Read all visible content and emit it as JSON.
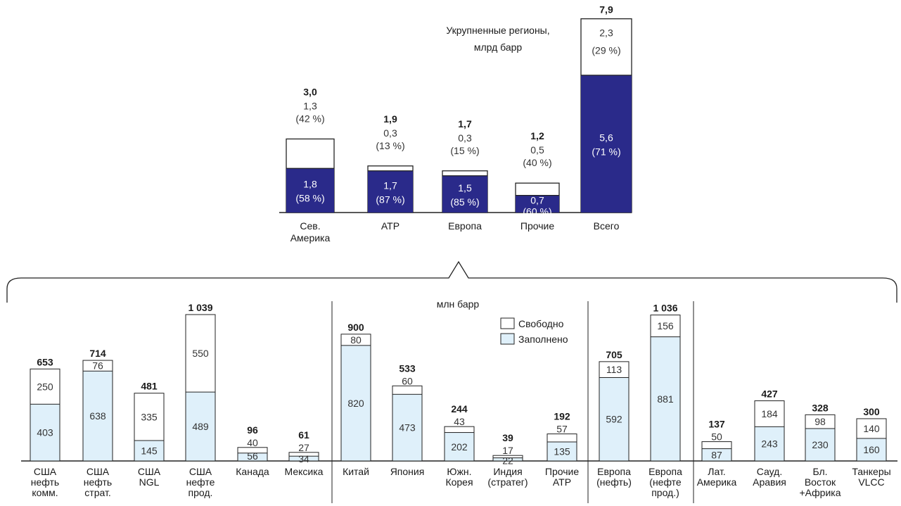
{
  "chart_data": [
    {
      "type": "bar",
      "stacked": true,
      "title": "Укрупненные регионы,\nмлрд  барр",
      "unit": "млрд барр",
      "categories": [
        "Сев.\nАмерика",
        "АТР",
        "Европа",
        "Прочие",
        "Всего"
      ],
      "series": [
        {
          "role": "filled",
          "values": [
            1.8,
            1.7,
            1.5,
            0.7,
            5.6
          ],
          "labels": [
            "1,8",
            "1,7",
            "1,5",
            "0,7",
            "5,6"
          ],
          "shares": [
            "(58 %)",
            "(87 %)",
            "(85 %)",
            "(60 %)",
            "(71 %)"
          ]
        },
        {
          "role": "free",
          "values": [
            1.3,
            0.3,
            0.3,
            0.5,
            2.3
          ],
          "labels": [
            "1,3",
            "0,3",
            "0,3",
            "0,5",
            "2,3"
          ],
          "shares": [
            "(42 %)",
            "(13 %)",
            "(15 %)",
            "(40 %)",
            "(29 %)"
          ]
        }
      ],
      "totals": [
        3.0,
        1.9,
        1.7,
        1.2,
        7.9
      ],
      "total_labels": [
        "3,0",
        "1,9",
        "1,7",
        "1,2",
        "7,9"
      ],
      "colors": {
        "filled": "#2a2a8a",
        "free": "#ffffff"
      }
    },
    {
      "type": "bar",
      "stacked": true,
      "title": "млн барр",
      "unit": "млн барр",
      "categories": [
        "США\nнефть\nкомм.",
        "США\nнефть\nстрат.",
        "США\nNGL",
        "США\nнефте\nпрод.",
        "Канада",
        "Мексика",
        "Китай",
        "Япония",
        "Южн.\nКорея",
        "Индия\n(стратег)",
        "Прочие\nАТР",
        "Европа\n(нефть)",
        "Европа\n(нефте\nпрод.)",
        "Лат.\nАмерика",
        "Сауд.\nАравия",
        "Бл.\nВосток\n+Африка",
        "Танкеры\nVLCC"
      ],
      "series": [
        {
          "name": "Заполнено",
          "values": [
            403,
            638,
            145,
            489,
            56,
            34,
            820,
            473,
            202,
            22,
            135,
            592,
            881,
            87,
            243,
            230,
            160
          ]
        },
        {
          "name": "Свободно",
          "values": [
            250,
            76,
            335,
            550,
            40,
            27,
            80,
            60,
            43,
            17,
            57,
            113,
            156,
            50,
            184,
            98,
            140
          ]
        }
      ],
      "totals": [
        653,
        714,
        481,
        1039,
        96,
        61,
        900,
        533,
        244,
        39,
        192,
        705,
        1036,
        137,
        427,
        328,
        300
      ],
      "total_labels": [
        "653",
        "714",
        "481",
        "1 039",
        "96",
        "61",
        "900",
        "533",
        "244",
        "39",
        "192",
        "705",
        "1 036",
        "137",
        "427",
        "328",
        "300"
      ],
      "legend": {
        "position": "top-right",
        "entries": [
          "Свободно",
          "Заполнено"
        ]
      },
      "colors": {
        "filled": "#dff0fa",
        "free": "#ffffff"
      }
    }
  ]
}
